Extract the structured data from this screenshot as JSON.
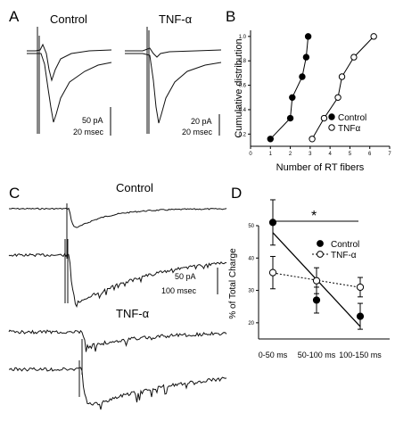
{
  "panels": {
    "A": {
      "letter": "A",
      "control_label": "Control",
      "tnf_label": "TNF-α",
      "scale_control": [
        "50 pA",
        "20 msec"
      ],
      "scale_tnf": [
        "20 pA",
        "20 msec"
      ]
    },
    "B": {
      "letter": "B"
    },
    "C": {
      "letter": "C",
      "control_label": "Control",
      "tnf_label": "TNF-α",
      "scale": [
        "50 pA",
        "100 msec"
      ]
    },
    "D": {
      "letter": "D",
      "significance": "*"
    }
  },
  "chart_data": [
    {
      "panel": "B",
      "type": "line",
      "xlabel": "Number of RT fibers",
      "ylabel": "Cumulative distribution",
      "xlim": [
        0,
        7
      ],
      "ylim": [
        0.1,
        1.05
      ],
      "xticks": [
        0,
        1,
        2,
        3,
        4,
        5,
        6,
        7
      ],
      "yticks": [
        0.2,
        0.4,
        0.6,
        0.8,
        1.0
      ],
      "ytick_labels": [
        "0.2",
        "0.4",
        "0.6",
        "0.8",
        "1.0"
      ],
      "legend": "bottom-right",
      "series": [
        {
          "name": "Control",
          "marker": "filled-circle",
          "points": [
            [
              1,
              0.16
            ],
            [
              2,
              0.33
            ],
            [
              2.1,
              0.5
            ],
            [
              2.6,
              0.67
            ],
            [
              2.8,
              0.83
            ],
            [
              2.9,
              1.0
            ]
          ]
        },
        {
          "name": "TNFα",
          "marker": "open-circle",
          "points": [
            [
              3.1,
              0.16
            ],
            [
              3.7,
              0.33
            ],
            [
              4.4,
              0.5
            ],
            [
              4.6,
              0.67
            ],
            [
              5.2,
              0.83
            ],
            [
              6.2,
              1.0
            ]
          ]
        }
      ]
    },
    {
      "panel": "D",
      "type": "scatter",
      "xlabel": "",
      "ylabel": "% of Total Charge",
      "categories": [
        "0-50 ms",
        "50-100 ms",
        "100-150 ms"
      ],
      "ylim": [
        15,
        50
      ],
      "yticks": [
        20,
        30,
        40,
        50
      ],
      "legend": "top-right",
      "series": [
        {
          "name": "Control",
          "marker": "filled-circle",
          "fit": "solid",
          "values": [
            51,
            27,
            22
          ],
          "errors": [
            7,
            4,
            4
          ]
        },
        {
          "name": "TNF-α",
          "marker": "open-circle",
          "fit": "dotted",
          "values": [
            35.5,
            33,
            31
          ],
          "errors": [
            5,
            4,
            3
          ]
        }
      ]
    }
  ]
}
